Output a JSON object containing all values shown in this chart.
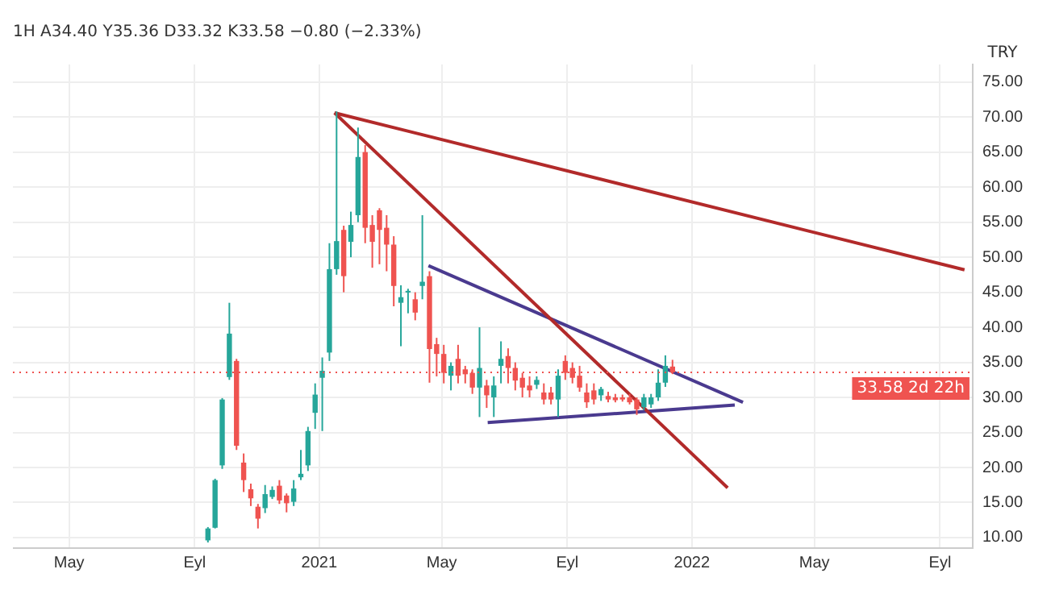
{
  "chart_data": {
    "type": "candlestick",
    "title": "1H A34.40 Y35.36 D33.32 K33.58 −0.80 (−2.33%)",
    "ylabel": "TRY",
    "x": [
      "2020-09-14",
      "2020-09-21",
      "2020-09-28",
      "2020-10-05",
      "2020-10-12",
      "2020-10-19",
      "2020-10-26",
      "2020-11-02",
      "2020-11-09",
      "2020-11-16",
      "2020-11-23",
      "2020-11-30",
      "2020-12-07",
      "2020-12-14",
      "2020-12-21",
      "2020-12-28",
      "2021-01-04",
      "2021-01-11",
      "2021-01-18",
      "2021-01-25",
      "2021-02-01",
      "2021-02-08",
      "2021-02-15",
      "2021-02-22",
      "2021-03-01",
      "2021-03-08",
      "2021-03-15",
      "2021-03-22",
      "2021-03-29",
      "2021-04-05",
      "2021-04-12",
      "2021-04-19",
      "2021-04-26",
      "2021-05-03",
      "2021-05-10",
      "2021-05-17",
      "2021-05-24",
      "2021-05-31",
      "2021-06-07",
      "2021-06-14",
      "2021-06-21",
      "2021-06-28",
      "2021-07-05",
      "2021-07-12",
      "2021-07-19",
      "2021-07-26",
      "2021-08-02",
      "2021-08-09",
      "2021-08-16",
      "2021-08-23",
      "2021-08-30",
      "2021-09-06",
      "2021-09-13",
      "2021-09-20",
      "2021-09-27",
      "2021-10-04",
      "2021-10-11",
      "2021-10-18",
      "2021-10-25",
      "2021-11-01",
      "2021-11-08",
      "2021-11-15",
      "2021-11-22",
      "2021-11-29",
      "2021-12-06",
      "2021-12-13"
    ],
    "ohlc": [
      [
        9.6,
        11.5,
        9.3,
        11.3
      ],
      [
        11.4,
        18.4,
        11.3,
        18.2
      ],
      [
        20.3,
        29.9,
        19.8,
        29.7
      ],
      [
        32.9,
        43.5,
        32.5,
        39.1
      ],
      [
        35.2,
        35.5,
        22.5,
        23.1
      ],
      [
        20.7,
        22,
        16.5,
        18.2
      ],
      [
        16.9,
        17.7,
        14.5,
        15.6
      ],
      [
        14.4,
        14.8,
        11.3,
        12.7
      ],
      [
        14.2,
        17.5,
        13.5,
        16.2
      ],
      [
        15.8,
        17.3,
        15.5,
        16.8
      ],
      [
        17.4,
        18.2,
        14.8,
        15.3
      ],
      [
        16,
        16.3,
        13.6,
        14.9
      ],
      [
        15.1,
        18.2,
        14.5,
        17
      ],
      [
        18.6,
        22.5,
        18.2,
        19.1
      ],
      [
        20.3,
        25.8,
        19.5,
        25.2
      ],
      [
        27.8,
        32,
        25.5,
        30.4
      ],
      [
        32.8,
        35.7,
        25.2,
        33.8
      ],
      [
        36.4,
        52,
        35.2,
        48.3
      ],
      [
        48.3,
        70.8,
        47.5,
        52.3
      ],
      [
        53.9,
        54.5,
        45,
        47.3
      ],
      [
        52.2,
        56.5,
        50,
        54.6
      ],
      [
        56,
        68.5,
        55,
        64.3
      ],
      [
        65,
        66,
        52,
        54.2
      ],
      [
        54.6,
        56,
        48.5,
        52.2
      ],
      [
        56.7,
        57,
        49,
        53.9
      ],
      [
        54.2,
        56,
        48,
        51.8
      ],
      [
        51.8,
        53,
        43,
        45.9
      ],
      [
        43.5,
        46,
        37.3,
        44.3
      ],
      [
        45,
        45.5,
        42,
        45.2
      ],
      [
        44,
        45,
        41,
        42.1
      ],
      [
        45.9,
        56,
        44,
        46.5
      ],
      [
        47.3,
        48,
        32.1,
        36.9
      ],
      [
        37.6,
        38.5,
        33,
        36.2
      ],
      [
        36.2,
        37.5,
        32,
        33.5
      ],
      [
        33.1,
        35,
        31,
        34.5
      ],
      [
        35.5,
        37.5,
        32,
        33.1
      ],
      [
        34,
        34.5,
        32,
        33.3
      ],
      [
        33.5,
        34,
        30.5,
        31.4
      ],
      [
        31.4,
        40,
        27.2,
        34.2
      ],
      [
        31.7,
        32.5,
        28.5,
        30.3
      ],
      [
        30,
        33,
        27.2,
        31.7
      ],
      [
        34.5,
        38,
        32,
        35.5
      ],
      [
        35.9,
        37,
        32,
        34.2
      ],
      [
        34.2,
        35,
        31,
        32.4
      ],
      [
        32.8,
        33.5,
        30,
        31.4
      ],
      [
        31.7,
        33,
        30,
        31
      ],
      [
        31.8,
        33,
        31.2,
        32.5
      ],
      [
        30.7,
        32,
        29,
        29.7
      ],
      [
        30.7,
        31.5,
        29,
        29.7
      ],
      [
        29.7,
        34,
        27.2,
        33.1
      ],
      [
        35.2,
        36,
        32.5,
        33.5
      ],
      [
        34.2,
        35,
        32,
        32.8
      ],
      [
        33.1,
        34.5,
        30.8,
        31.4
      ],
      [
        30.7,
        32,
        28.5,
        29.3
      ],
      [
        31,
        32,
        29,
        29.7
      ],
      [
        30.3,
        31.5,
        29.5,
        31.2
      ],
      [
        30.2,
        30.8,
        29.3,
        29.7
      ],
      [
        30,
        30.5,
        29.3,
        29.6
      ],
      [
        30,
        30.4,
        29.4,
        29.7
      ],
      [
        30,
        30.5,
        29,
        29.3
      ],
      [
        29.7,
        30,
        27.5,
        28.3
      ],
      [
        28.6,
        30.5,
        28.2,
        30
      ],
      [
        29,
        30.5,
        28.5,
        30
      ],
      [
        30,
        34,
        29.5,
        32.1
      ],
      [
        32.1,
        36,
        31.5,
        34.5
      ],
      [
        34.4,
        35.36,
        33.32,
        33.58
      ]
    ],
    "colors": [
      "#26a69a",
      "#26a69a",
      "#26a69a",
      "#26a69a",
      "#ef5350",
      "#ef5350",
      "#ef5350",
      "#ef5350",
      "#26a69a",
      "#26a69a",
      "#ef5350",
      "#ef5350",
      "#26a69a",
      "#26a69a",
      "#26a69a",
      "#26a69a",
      "#26a69a",
      "#26a69a",
      "#26a69a",
      "#ef5350",
      "#26a69a",
      "#26a69a",
      "#ef5350",
      "#ef5350",
      "#ef5350",
      "#ef5350",
      "#ef5350",
      "#26a69a",
      "#26a69a",
      "#ef5350",
      "#26a69a",
      "#ef5350",
      "#ef5350",
      "#ef5350",
      "#26a69a",
      "#ef5350",
      "#ef5350",
      "#ef5350",
      "#26a69a",
      "#ef5350",
      "#26a69a",
      "#26a69a",
      "#ef5350",
      "#ef5350",
      "#ef5350",
      "#ef5350",
      "#26a69a",
      "#ef5350",
      "#ef5350",
      "#26a69a",
      "#ef5350",
      "#ef5350",
      "#ef5350",
      "#ef5350",
      "#ef5350",
      "#26a69a",
      "#ef5350",
      "#ef5350",
      "#ef5350",
      "#ef5350",
      "#ef5350",
      "#26a69a",
      "#26a69a",
      "#26a69a",
      "#26a69a",
      "#ef5350"
    ],
    "series": [
      {
        "type": "line",
        "color": "#b22a2a",
        "x": [
          "2021-01-16",
          "2022-09-25"
        ],
        "values": [
          70.6,
          48.2
        ]
      },
      {
        "type": "line",
        "color": "#b22a2a",
        "x": [
          "2021-01-16",
          "2022-02-05"
        ],
        "values": [
          70.6,
          17.1
        ]
      },
      {
        "type": "line",
        "color": "#4a3a8f",
        "x": [
          "2021-04-18",
          "2022-02-20"
        ],
        "values": [
          48.8,
          29.3
        ]
      },
      {
        "type": "line",
        "color": "#4a3a8f",
        "x": [
          "2021-06-15",
          "2022-02-12"
        ],
        "values": [
          26.4,
          28.9
        ]
      }
    ],
    "ref_lines": [
      {
        "axis": "y",
        "value": 33.58,
        "label": "33.58 2d 22h",
        "color": "#ef5350",
        "line_style": "dotted"
      }
    ],
    "xlim": [
      "2020-03-07",
      "2022-10-03"
    ],
    "xticks": [
      {
        "value": "2020-05-01",
        "label": "May"
      },
      {
        "value": "2020-09-01",
        "label": "Eyl"
      },
      {
        "value": "2021-01-01",
        "label": "2021"
      },
      {
        "value": "2021-05-01",
        "label": "May"
      },
      {
        "value": "2021-09-01",
        "label": "Eyl"
      },
      {
        "value": "2022-01-01",
        "label": "2022"
      },
      {
        "value": "2022-05-01",
        "label": "May"
      },
      {
        "value": "2022-09-01",
        "label": "Eyl"
      }
    ],
    "ylim": [
      8.5,
      77.5
    ],
    "yticks": [
      {
        "value": 10,
        "label": "10.00"
      },
      {
        "value": 15,
        "label": "15.00"
      },
      {
        "value": 20,
        "label": "20.00"
      },
      {
        "value": 25,
        "label": "25.00"
      },
      {
        "value": 30,
        "label": "30.00"
      },
      {
        "value": 35,
        "label": "35.00"
      },
      {
        "value": 40,
        "label": "40.00"
      },
      {
        "value": 45,
        "label": "45.00"
      },
      {
        "value": 50,
        "label": "50.00"
      },
      {
        "value": 55,
        "label": "55.00"
      },
      {
        "value": 60,
        "label": "60.00"
      },
      {
        "value": 65,
        "label": "65.00"
      },
      {
        "value": 70,
        "label": "70.00"
      },
      {
        "value": 75,
        "label": "75.00"
      }
    ],
    "grid": true,
    "legend": false
  }
}
